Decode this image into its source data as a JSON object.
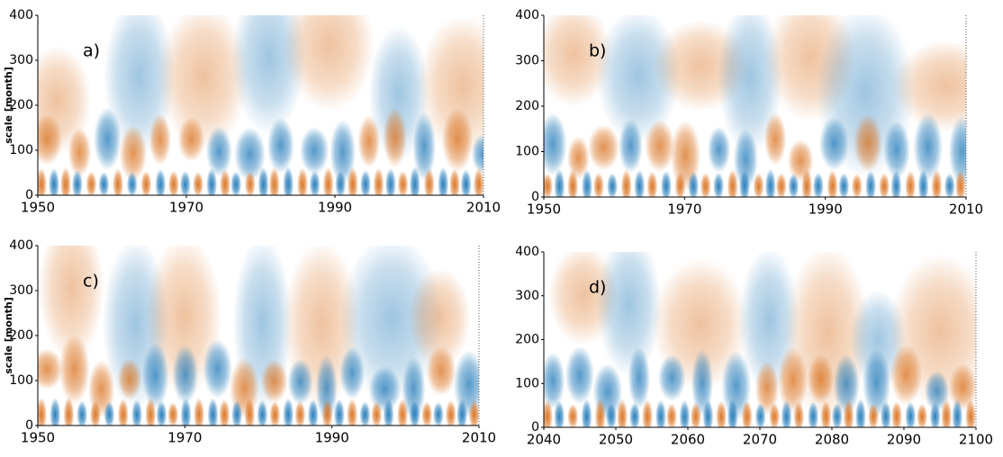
{
  "chart_data": [
    {
      "type": "heatmap",
      "label": "a)",
      "ylabel": "scale [month]",
      "colors": [
        "#1f78b8",
        "#ffffff",
        "#d9701c"
      ],
      "xlim": [
        1950,
        2010
      ],
      "xticks": [
        1950,
        1970,
        1990,
        2010
      ],
      "ylim": [
        0,
        400
      ],
      "yticks": [
        0,
        100,
        200,
        300,
        400
      ]
    },
    {
      "type": "heatmap",
      "label": "b)",
      "colors": [
        "#1f78b8",
        "#ffffff",
        "#d9701c"
      ],
      "xlim": [
        1950,
        2010
      ],
      "xticks": [
        1950,
        1970,
        1990,
        2010
      ],
      "ylim": [
        0,
        400
      ],
      "yticks": [
        0,
        100,
        200,
        300,
        400
      ]
    },
    {
      "type": "heatmap",
      "label": "c)",
      "ylabel": "scale [month]",
      "colors": [
        "#1f78b8",
        "#ffffff",
        "#d9701c"
      ],
      "xlim": [
        1950,
        2010
      ],
      "xticks": [
        1950,
        1970,
        1990,
        2010
      ],
      "ylim": [
        0,
        400
      ],
      "yticks": [
        0,
        100,
        200,
        300,
        400
      ]
    },
    {
      "type": "heatmap",
      "label": "d)",
      "colors": [
        "#1f78b8",
        "#ffffff",
        "#d9701c"
      ],
      "xlim": [
        2040,
        2100
      ],
      "xticks": [
        2040,
        2050,
        2060,
        2070,
        2080,
        2090,
        2100
      ],
      "ylim": [
        0,
        400
      ],
      "yticks": [
        0,
        100,
        200,
        300,
        400
      ]
    }
  ]
}
